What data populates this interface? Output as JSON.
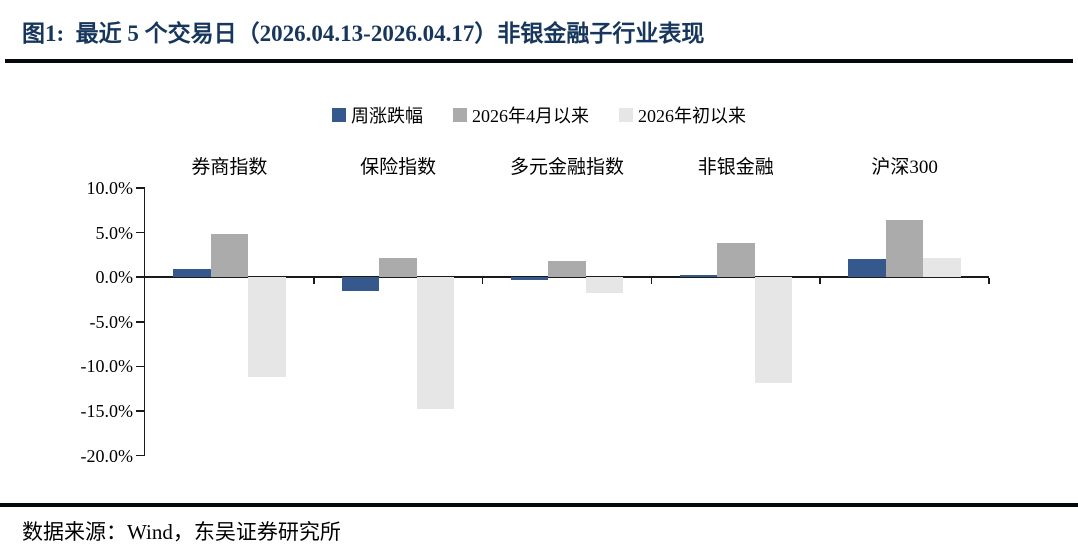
{
  "header": {
    "title": "图1:  最近 5 个交易日（2026.04.13-2026.04.17）非银金融子行业表现"
  },
  "footer": {
    "source": "数据来源：Wind，东吴证券研究所"
  },
  "chart_data": {
    "type": "bar",
    "title": "最近5个交易日（2026.04.13-2026.04.17）非银金融子行业表现",
    "categories": [
      "券商指数",
      "保险指数",
      "多元金融指数",
      "非银金融",
      "沪深300"
    ],
    "series": [
      {
        "name": "周涨跌幅",
        "color": "#35598c",
        "values": [
          0.9,
          -1.6,
          -0.3,
          0.2,
          2.0
        ]
      },
      {
        "name": "2026年4月以来",
        "color": "#ababab",
        "values": [
          4.8,
          2.1,
          1.8,
          3.8,
          6.4
        ]
      },
      {
        "name": "2026年初以来",
        "color": "#e6e6e6",
        "values": [
          -11.2,
          -14.8,
          -1.8,
          -11.9,
          2.2
        ]
      }
    ],
    "ylim": [
      -20,
      10
    ],
    "yticks": {
      "labels": [
        "10.0%",
        "5.0%",
        "0.0%",
        "-5.0%",
        "-10.0%",
        "-15.0%",
        "-20.0%"
      ],
      "values": [
        10,
        5,
        0,
        -5,
        -10,
        -15,
        -20
      ]
    },
    "ytick_format": "percent_1dp",
    "legend_position": "top",
    "grid": false,
    "axis_color": "#1a1a1a"
  }
}
